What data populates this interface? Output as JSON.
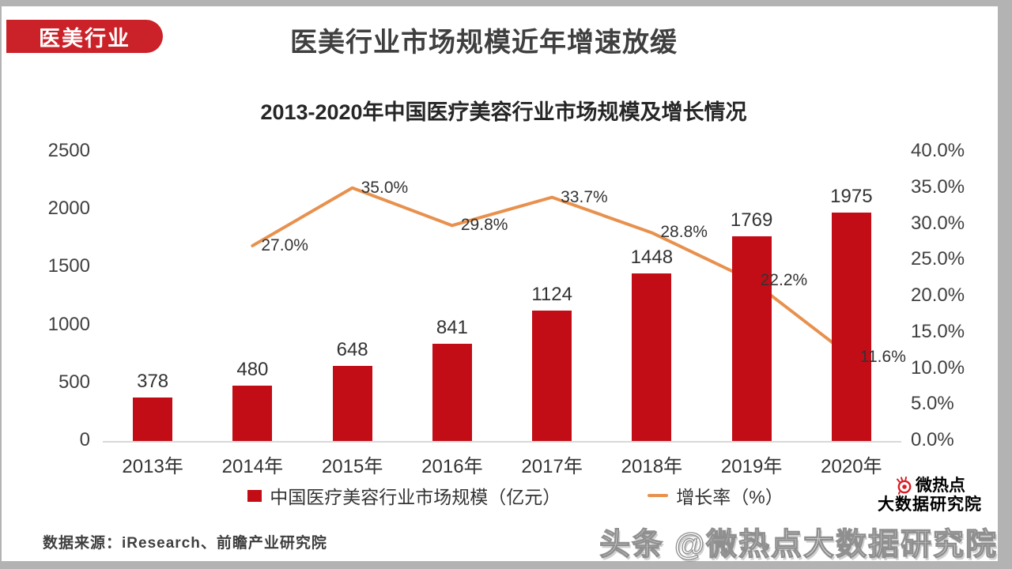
{
  "page": {
    "badge": "医美行业",
    "title": "医美行业市场规模近年增速放缓",
    "source": "数据来源：iResearch、前瞻产业研究院",
    "watermark": "头条 @微热点大数据研究院",
    "logo": {
      "line1": "微热点",
      "line2": "大数据研究院"
    }
  },
  "colors": {
    "badge": "#cb2128",
    "bar": "#c20d17",
    "line": "#e8914e",
    "logo_red": "#d91f26",
    "axis_line": "#d9d9d9",
    "label_text": "#333333"
  },
  "chart_data": {
    "type": "bar",
    "title": "2013-2020年中国医疗美容行业市场规模及增长情况",
    "categories": [
      "2013年",
      "2014年",
      "2015年",
      "2016年",
      "2017年",
      "2018年",
      "2019年",
      "2020年"
    ],
    "series": [
      {
        "name": "中国医疗美容行业市场规模（亿元）",
        "type": "bar",
        "axis": "left",
        "values": [
          378,
          480,
          648,
          841,
          1124,
          1448,
          1769,
          1975
        ],
        "labels": [
          "378",
          "480",
          "648",
          "841",
          "1124",
          "1448",
          "1769",
          "1975"
        ]
      },
      {
        "name": "增长率（%）",
        "type": "line",
        "axis": "right",
        "values": [
          null,
          27.0,
          35.0,
          29.8,
          33.7,
          28.8,
          22.2,
          11.6
        ],
        "labels": [
          "",
          "27.0%",
          "35.0%",
          "29.8%",
          "33.7%",
          "28.8%",
          "22.2%",
          "11.6%"
        ]
      }
    ],
    "left_axis": {
      "min": 0,
      "max": 2500,
      "ticks": [
        "0",
        "500",
        "1000",
        "1500",
        "2000",
        "2500"
      ]
    },
    "right_axis": {
      "min": 0,
      "max": 40,
      "ticks": [
        "0.0%",
        "5.0%",
        "10.0%",
        "15.0%",
        "20.0%",
        "25.0%",
        "30.0%",
        "35.0%",
        "40.0%"
      ]
    },
    "legend": [
      {
        "label": "中国医疗美容行业市场规模（亿元）",
        "swatch": "bar"
      },
      {
        "label": "增长率（%）",
        "swatch": "line"
      }
    ],
    "grid": false,
    "legend_position": "bottom"
  }
}
